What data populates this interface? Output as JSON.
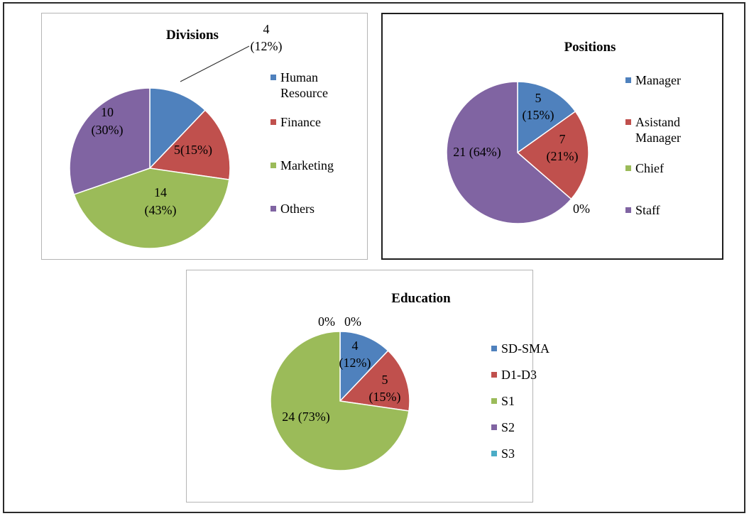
{
  "colors": {
    "blue": "#4f81bd",
    "red": "#c0504d",
    "green": "#9bbb59",
    "purple": "#8064a2",
    "aqua": "#4bacc6"
  },
  "chart_data": [
    {
      "type": "pie",
      "title": "Divisions",
      "categories": [
        "Human Resource",
        "Finance",
        "Marketing",
        "Others"
      ],
      "values": [
        4,
        5,
        14,
        10
      ],
      "percentages": [
        "12%",
        "15%",
        "43%",
        "30%"
      ],
      "data_labels": [
        "4 (12%)",
        "5(15%)",
        "14 (43%)",
        "10 (30%)"
      ],
      "legend_labels": [
        "Human Resource",
        "Finance",
        "Marketing",
        "Others"
      ],
      "colors": [
        "#4f81bd",
        "#c0504d",
        "#9bbb59",
        "#8064a2"
      ],
      "legend": "right"
    },
    {
      "type": "pie",
      "title": "Positions",
      "categories": [
        "Manager",
        "Asistand Manager",
        "Chief",
        "Staff"
      ],
      "values": [
        5,
        7,
        0,
        21
      ],
      "percentages": [
        "15%",
        "21%",
        "0%",
        "64%"
      ],
      "data_labels": [
        "5 (15%)",
        "7 (21%)",
        "0%",
        "21 (64%)"
      ],
      "legend_labels": [
        "Manager",
        "Asistand Manager",
        "Chief",
        "Staff"
      ],
      "colors": [
        "#4f81bd",
        "#c0504d",
        "#9bbb59",
        "#8064a2"
      ],
      "legend": "right"
    },
    {
      "type": "pie",
      "title": "Education",
      "categories": [
        "SD-SMA",
        "D1-D3",
        "S1",
        "S2",
        "S3"
      ],
      "values": [
        4,
        5,
        24,
        0,
        0
      ],
      "percentages": [
        "12%",
        "15%",
        "73%",
        "0%",
        "0%"
      ],
      "data_labels": [
        "4 (12%)",
        "5 (15%)",
        "24 (73%)",
        "0%",
        "0%"
      ],
      "legend_labels": [
        "SD-SMA",
        "D1-D3",
        "S1",
        "S2",
        "S3"
      ],
      "colors": [
        "#4f81bd",
        "#c0504d",
        "#9bbb59",
        "#8064a2",
        "#4bacc6"
      ],
      "legend": "right"
    }
  ]
}
